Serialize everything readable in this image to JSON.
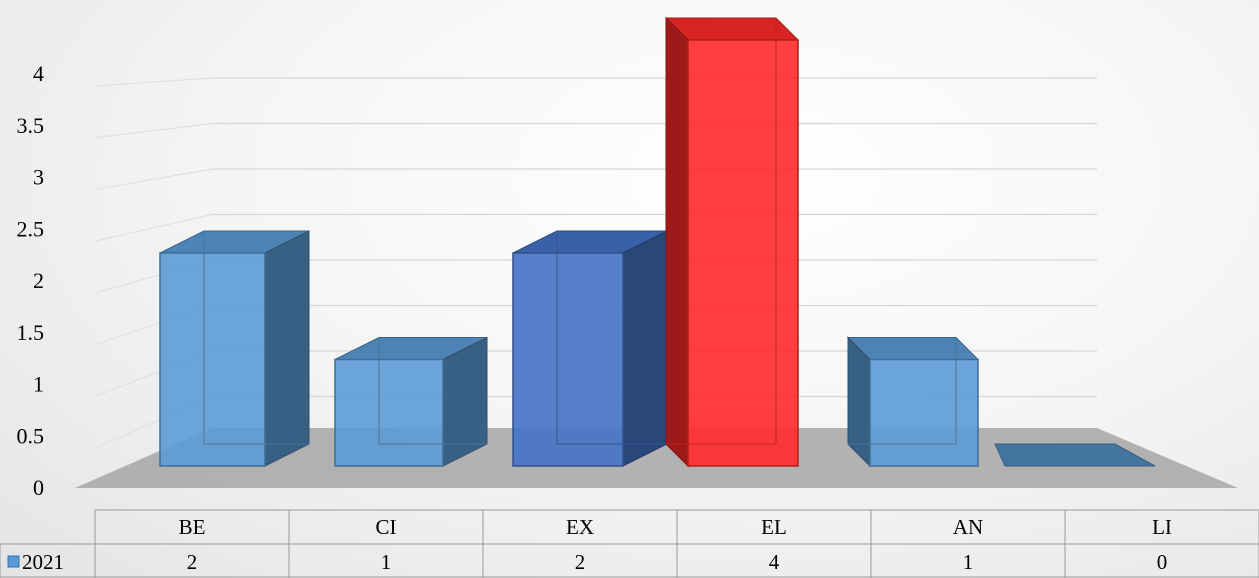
{
  "chart_data": {
    "type": "bar",
    "categories": [
      "BE",
      "CI",
      "EX",
      "EL",
      "AN",
      "LI"
    ],
    "series": [
      {
        "name": "2021",
        "values": [
          2,
          1,
          2,
          4,
          1,
          0
        ]
      }
    ],
    "ylim": [
      0,
      4
    ],
    "yticks": [
      "0",
      "0.5",
      "1",
      "1.5",
      "2",
      "2.5",
      "3",
      "3.5",
      "4"
    ],
    "grid": true,
    "legend": "data-table",
    "data_table": true,
    "colors": {
      "default_bar": "#5b9bd5",
      "ex_bar": "#4472c4",
      "highlight_bar": "#ff2a2a",
      "floor": "#a6a6a6"
    },
    "bar_colors": [
      "#5b9bd5",
      "#5b9bd5",
      "#4472c4",
      "#ff2a2a",
      "#5b9bd5",
      "#5b9bd5"
    ]
  }
}
